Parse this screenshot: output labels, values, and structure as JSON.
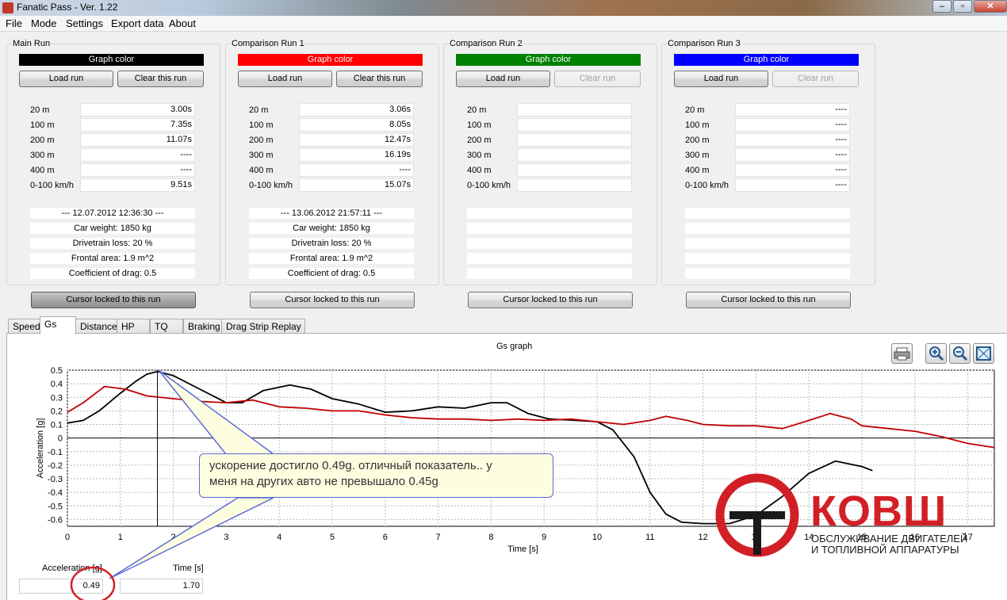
{
  "window": {
    "title": "Fanatic Pass - Ver. 1.22",
    "min": "‒",
    "max": "▫",
    "close": "✕"
  },
  "menu": [
    "File",
    "Mode",
    "Settings",
    "Export data",
    "About"
  ],
  "run_labels": [
    "20 m",
    "100 m",
    "200 m",
    "300 m",
    "400 m",
    "0-100 km/h"
  ],
  "runs": [
    {
      "title": "Main Run",
      "color_label": "Graph color",
      "color": "#000000",
      "load_label": "Load run",
      "clear_label": "Clear this run",
      "clear_enabled": true,
      "values": [
        "3.00s",
        "7.35s",
        "11.07s",
        "----",
        "----",
        "9.51s"
      ],
      "info": [
        "--- 12.07.2012 12:36:30 ---",
        "Car weight: 1850 kg",
        "Drivetrain loss: 20 %",
        "Frontal area: 1.9 m^2",
        "Coefficient of drag: 0.5"
      ],
      "cursor_label": "Cursor locked to this run",
      "cursor_active": true
    },
    {
      "title": "Comparison Run 1",
      "color_label": "Graph color",
      "color": "#ff0000",
      "load_label": "Load run",
      "clear_label": "Clear this run",
      "clear_enabled": true,
      "values": [
        "3.06s",
        "8.05s",
        "12.47s",
        "16.19s",
        "----",
        "15.07s"
      ],
      "info": [
        "--- 13.06.2012 21:57:11 ---",
        "Car weight: 1850 kg",
        "Drivetrain loss: 20 %",
        "Frontal area: 1.9 m^2",
        "Coefficient of drag: 0.5"
      ],
      "cursor_label": "Cursor locked to this run",
      "cursor_active": false
    },
    {
      "title": "Comparison Run 2",
      "color_label": "Graph color",
      "color": "#008000",
      "load_label": "Load run",
      "clear_label": "Clear run",
      "clear_enabled": false,
      "values": [
        "",
        "",
        "",
        "",
        "",
        ""
      ],
      "info": [
        "",
        "",
        "",
        "",
        ""
      ],
      "cursor_label": "Cursor locked to this run",
      "cursor_active": false
    },
    {
      "title": "Comparison Run 3",
      "color_label": "Graph color",
      "color": "#0000ff",
      "load_label": "Load run",
      "clear_label": "Clear run",
      "clear_enabled": false,
      "values": [
        "----",
        "----",
        "----",
        "----",
        "----",
        "----"
      ],
      "info": [
        "",
        "",
        "",
        "",
        ""
      ],
      "cursor_label": "Cursor locked to this run",
      "cursor_active": false
    }
  ],
  "tabs": [
    "Speed",
    "Gs",
    "Distance",
    "HP",
    "TQ",
    "Braking",
    "Drag Strip Replay"
  ],
  "active_tab": "Gs",
  "toolbar_icons": [
    "printer-icon",
    "zoom-in-icon",
    "zoom-out-icon",
    "zoom-fit-icon"
  ],
  "readout": {
    "accel_label": "Acceleration [g]",
    "accel_value": "0.49",
    "time_label": "Time [s]",
    "time_value": "1.70"
  },
  "annotation": {
    "line1": "ускорение достигло 0.49g. отличный показатель..  у",
    "line2": "меня на других авто не превышало 0.45g"
  },
  "logo": {
    "name": "КОВШ",
    "tagline1": "ОБСЛУЖИВАНИЕ ДВИГАТЕЛЕЙ",
    "tagline2": "И ТОПЛИВНОЙ АППАРАТУРЫ"
  },
  "chart_data": {
    "type": "line",
    "title": "Gs graph",
    "xlabel": "Time [s]",
    "ylabel": "Acceleration [g]",
    "xlim": [
      0,
      17.5
    ],
    "ylim": [
      -0.65,
      0.5
    ],
    "xticks": [
      0,
      1,
      2,
      3,
      4,
      5,
      6,
      7,
      8,
      9,
      10,
      11,
      12,
      13,
      14,
      15,
      16,
      17
    ],
    "yticks": [
      0.5,
      0.4,
      0.3,
      0.2,
      0.1,
      0,
      -0.1,
      -0.2,
      -0.3,
      -0.4,
      -0.5,
      -0.6
    ],
    "grid": true,
    "cursor_x": 1.7,
    "series": [
      {
        "color": "#000000",
        "points": [
          [
            0,
            0.11
          ],
          [
            0.3,
            0.13
          ],
          [
            0.6,
            0.2
          ],
          [
            1.0,
            0.33
          ],
          [
            1.3,
            0.42
          ],
          [
            1.5,
            0.47
          ],
          [
            1.7,
            0.49
          ],
          [
            2.0,
            0.46
          ],
          [
            2.5,
            0.36
          ],
          [
            3.0,
            0.26
          ],
          [
            3.3,
            0.26
          ],
          [
            3.7,
            0.35
          ],
          [
            4.2,
            0.39
          ],
          [
            4.6,
            0.36
          ],
          [
            5.0,
            0.29
          ],
          [
            5.5,
            0.25
          ],
          [
            6.0,
            0.19
          ],
          [
            6.5,
            0.2
          ],
          [
            7.0,
            0.23
          ],
          [
            7.5,
            0.22
          ],
          [
            8.0,
            0.26
          ],
          [
            8.3,
            0.26
          ],
          [
            8.7,
            0.18
          ],
          [
            9.1,
            0.14
          ],
          [
            9.6,
            0.13
          ],
          [
            10.0,
            0.12
          ],
          [
            10.3,
            0.06
          ],
          [
            10.7,
            -0.14
          ],
          [
            11.0,
            -0.4
          ],
          [
            11.3,
            -0.56
          ],
          [
            11.6,
            -0.62
          ],
          [
            12.0,
            -0.63
          ],
          [
            12.5,
            -0.63
          ],
          [
            13.0,
            -0.57
          ],
          [
            13.5,
            -0.43
          ],
          [
            14.0,
            -0.26
          ],
          [
            14.5,
            -0.17
          ],
          [
            15.0,
            -0.21
          ],
          [
            15.2,
            -0.24
          ]
        ]
      },
      {
        "color": "#c00000",
        "points": [
          [
            0,
            0.19
          ],
          [
            0.3,
            0.26
          ],
          [
            0.7,
            0.38
          ],
          [
            1.1,
            0.36
          ],
          [
            1.5,
            0.31
          ],
          [
            2.0,
            0.29
          ],
          [
            2.5,
            0.27
          ],
          [
            3.0,
            0.26
          ],
          [
            3.5,
            0.28
          ],
          [
            4.0,
            0.23
          ],
          [
            4.5,
            0.22
          ],
          [
            5.0,
            0.2
          ],
          [
            5.5,
            0.2
          ],
          [
            6.0,
            0.17
          ],
          [
            6.5,
            0.15
          ],
          [
            7.0,
            0.14
          ],
          [
            7.5,
            0.14
          ],
          [
            8.0,
            0.13
          ],
          [
            8.5,
            0.14
          ],
          [
            9.0,
            0.13
          ],
          [
            9.5,
            0.14
          ],
          [
            10.0,
            0.12
          ],
          [
            10.5,
            0.1
          ],
          [
            11.0,
            0.13
          ],
          [
            11.3,
            0.16
          ],
          [
            11.7,
            0.13
          ],
          [
            12.0,
            0.1
          ],
          [
            12.5,
            0.09
          ],
          [
            13.0,
            0.09
          ],
          [
            13.5,
            0.07
          ],
          [
            14.0,
            0.13
          ],
          [
            14.4,
            0.18
          ],
          [
            14.8,
            0.14
          ],
          [
            15.0,
            0.09
          ],
          [
            15.5,
            0.07
          ],
          [
            16.0,
            0.05
          ],
          [
            16.5,
            0.01
          ],
          [
            17.0,
            -0.04
          ],
          [
            17.5,
            -0.07
          ]
        ]
      }
    ]
  }
}
